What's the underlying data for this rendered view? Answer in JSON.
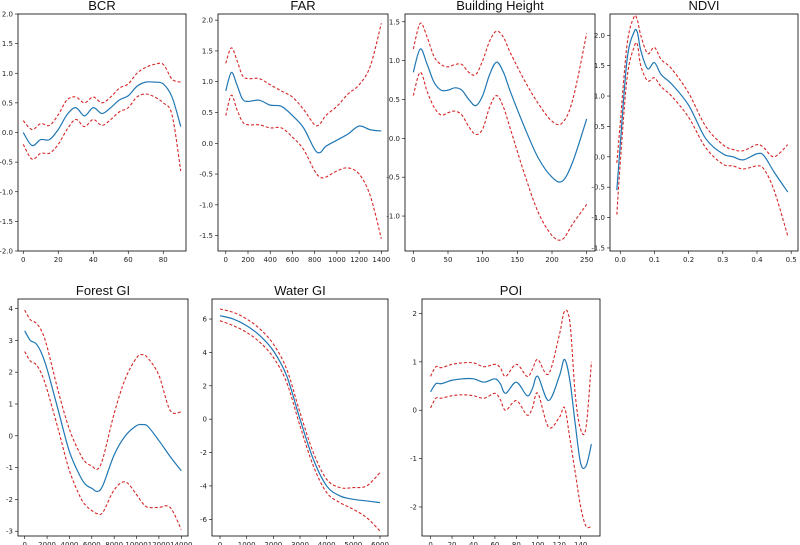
{
  "colors": {
    "fit": "#1f77b4",
    "ci": "#d62728",
    "axis": "#000000"
  },
  "chart_data": [
    {
      "type": "line",
      "title": "BCR",
      "xlim": [
        -3,
        93
      ],
      "ylim": [
        -2.0,
        2.0
      ],
      "xticks": [
        0,
        20,
        40,
        60,
        80
      ],
      "xtick_labels": [
        "0",
        "20",
        "40",
        "60",
        "80"
      ],
      "yticks": [
        -2.0,
        -1.5,
        -1.0,
        -0.5,
        0.0,
        0.5,
        1.0,
        1.5,
        2.0
      ],
      "ytick_labels": [
        "-2.0",
        "-1.5",
        "-1.0",
        "-0.5",
        "0.0",
        "0.5",
        "1.0",
        "1.5",
        "2.0"
      ],
      "x": [
        0,
        5,
        10,
        15,
        20,
        25,
        30,
        35,
        40,
        45,
        50,
        55,
        60,
        65,
        70,
        75,
        80,
        85,
        90
      ],
      "series": [
        {
          "values": [
            0.0,
            -0.22,
            -0.12,
            -0.12,
            0.05,
            0.3,
            0.42,
            0.28,
            0.42,
            0.32,
            0.42,
            0.55,
            0.62,
            0.78,
            0.85,
            0.85,
            0.82,
            0.6,
            0.1
          ]
        },
        {
          "values": [
            0.2,
            0.05,
            0.15,
            0.12,
            0.3,
            0.55,
            0.6,
            0.5,
            0.6,
            0.5,
            0.6,
            0.75,
            0.82,
            1.0,
            1.1,
            1.15,
            1.15,
            0.9,
            0.85
          ]
        },
        {
          "values": [
            -0.2,
            -0.45,
            -0.35,
            -0.35,
            -0.2,
            0.05,
            0.22,
            0.1,
            0.22,
            0.12,
            0.22,
            0.35,
            0.42,
            0.6,
            0.65,
            0.6,
            0.5,
            0.3,
            -0.65
          ]
        }
      ]
    },
    {
      "type": "line",
      "title": "FAR",
      "xlim": [
        -70,
        1460
      ],
      "ylim": [
        -1.75,
        2.1
      ],
      "xticks": [
        0,
        200,
        400,
        600,
        800,
        1000,
        1200,
        1400
      ],
      "xtick_labels": [
        "0",
        "200",
        "400",
        "600",
        "800",
        "1000",
        "1200",
        "1400"
      ],
      "yticks": [
        -1.5,
        -1.0,
        -0.5,
        0.0,
        0.5,
        1.0,
        1.5,
        2.0
      ],
      "ytick_labels": [
        "-1.5",
        "-1.0",
        "-0.5",
        "0.0",
        "0.5",
        "1.0",
        "1.5",
        "2.0"
      ],
      "x": [
        0,
        50,
        100,
        150,
        200,
        300,
        400,
        500,
        600,
        700,
        800,
        850,
        900,
        1000,
        1100,
        1200,
        1300,
        1400
      ],
      "series": [
        {
          "values": [
            0.85,
            1.15,
            0.95,
            0.72,
            0.68,
            0.7,
            0.62,
            0.6,
            0.45,
            0.25,
            -0.1,
            -0.15,
            -0.05,
            0.05,
            0.15,
            0.28,
            0.22,
            0.2
          ]
        },
        {
          "values": [
            1.3,
            1.55,
            1.35,
            1.1,
            1.05,
            1.05,
            0.95,
            0.85,
            0.75,
            0.55,
            0.3,
            0.32,
            0.45,
            0.6,
            0.8,
            0.95,
            1.25,
            1.95
          ]
        },
        {
          "values": [
            0.45,
            0.78,
            0.55,
            0.35,
            0.3,
            0.3,
            0.25,
            0.25,
            0.1,
            -0.1,
            -0.45,
            -0.55,
            -0.55,
            -0.45,
            -0.4,
            -0.5,
            -0.85,
            -1.55
          ]
        }
      ]
    },
    {
      "type": "line",
      "title": "Building Height",
      "xlim": [
        -12,
        262
      ],
      "ylim": [
        -1.45,
        1.6
      ],
      "xticks": [
        0,
        50,
        100,
        150,
        200,
        250
      ],
      "xtick_labels": [
        "0",
        "50",
        "100",
        "150",
        "200",
        "250"
      ],
      "yticks": [
        -1.0,
        -0.5,
        0.0,
        0.5,
        1.0,
        1.5
      ],
      "ytick_labels": [
        "-1.0",
        "-0.5",
        "0.0",
        "0.5",
        "1.0",
        "1.5"
      ],
      "x": [
        0,
        10,
        20,
        30,
        40,
        50,
        60,
        70,
        80,
        90,
        100,
        110,
        120,
        130,
        140,
        160,
        180,
        200,
        215,
        230,
        250
      ],
      "series": [
        {
          "values": [
            0.85,
            1.15,
            0.95,
            0.72,
            0.62,
            0.62,
            0.65,
            0.62,
            0.5,
            0.42,
            0.55,
            0.82,
            0.98,
            0.85,
            0.6,
            0.15,
            -0.25,
            -0.5,
            -0.55,
            -0.3,
            0.25
          ]
        },
        {
          "values": [
            1.15,
            1.48,
            1.3,
            1.05,
            0.95,
            0.92,
            0.95,
            0.95,
            0.85,
            0.82,
            1.0,
            1.25,
            1.38,
            1.3,
            1.1,
            0.75,
            0.45,
            0.22,
            0.2,
            0.5,
            1.35
          ]
        },
        {
          "values": [
            0.55,
            0.85,
            0.6,
            0.4,
            0.3,
            0.33,
            0.35,
            0.3,
            0.15,
            0.05,
            0.12,
            0.4,
            0.55,
            0.4,
            0.12,
            -0.45,
            -0.95,
            -1.25,
            -1.3,
            -1.1,
            -0.85
          ]
        }
      ]
    },
    {
      "type": "line",
      "title": "NDVI",
      "xlim": [
        -0.03,
        0.52
      ],
      "ylim": [
        -1.55,
        2.35
      ],
      "xticks": [
        0.0,
        0.1,
        0.2,
        0.3,
        0.4,
        0.5
      ],
      "xtick_labels": [
        "0.0",
        "0.1",
        "0.2",
        "0.3",
        "0.4",
        "0.5"
      ],
      "yticks": [
        -1.5,
        -1.0,
        -0.5,
        0.0,
        0.5,
        1.0,
        1.5,
        2.0
      ],
      "ytick_labels": [
        "-1.5",
        "-1.0",
        "-0.5",
        "0.0",
        "0.5",
        "1.0",
        "1.5",
        "2.0"
      ],
      "x": [
        -0.01,
        0.0,
        0.02,
        0.04,
        0.05,
        0.06,
        0.08,
        0.1,
        0.12,
        0.15,
        0.2,
        0.25,
        0.3,
        0.33,
        0.36,
        0.4,
        0.42,
        0.45,
        0.49
      ],
      "series": [
        {
          "values": [
            -0.55,
            0.2,
            1.6,
            2.05,
            2.05,
            1.75,
            1.45,
            1.55,
            1.35,
            1.2,
            0.85,
            0.3,
            0.05,
            0.0,
            -0.05,
            0.05,
            0.02,
            -0.25,
            -0.58
          ]
        },
        {
          "values": [
            -0.1,
            0.55,
            1.85,
            2.3,
            2.25,
            2.0,
            1.7,
            1.8,
            1.6,
            1.45,
            1.05,
            0.5,
            0.2,
            0.12,
            0.1,
            0.2,
            0.15,
            0.0,
            0.2
          ]
        },
        {
          "values": [
            -0.95,
            -0.1,
            1.3,
            1.8,
            1.85,
            1.5,
            1.25,
            1.3,
            1.15,
            1.0,
            0.65,
            0.15,
            -0.12,
            -0.15,
            -0.2,
            -0.15,
            -0.2,
            -0.55,
            -1.3
          ]
        }
      ]
    },
    {
      "type": "line",
      "title": "Forest GI",
      "xlim": [
        -600,
        14600
      ],
      "ylim": [
        -3.15,
        4.3
      ],
      "xticks": [
        0,
        2000,
        4000,
        6000,
        8000,
        10000,
        12000,
        14000
      ],
      "xtick_labels": [
        "0",
        "2000",
        "4000",
        "6000",
        "8000",
        "10000",
        "12000",
        "14000"
      ],
      "yticks": [
        -3,
        -2,
        -1,
        0,
        1,
        2,
        3,
        4
      ],
      "ytick_labels": [
        "-3",
        "-2",
        "-1",
        "0",
        "1",
        "2",
        "3",
        "4"
      ],
      "x": [
        0,
        500,
        1000,
        1500,
        2000,
        3000,
        4000,
        5000,
        5500,
        6000,
        6500,
        7000,
        8000,
        9000,
        10000,
        10500,
        11000,
        12000,
        13000,
        14000
      ],
      "series": [
        {
          "values": [
            3.3,
            3.0,
            2.9,
            2.6,
            2.1,
            0.8,
            -0.5,
            -1.3,
            -1.55,
            -1.65,
            -1.75,
            -1.55,
            -0.6,
            0.0,
            0.32,
            0.35,
            0.3,
            -0.15,
            -0.65,
            -1.1
          ]
        },
        {
          "values": [
            3.95,
            3.65,
            3.55,
            3.3,
            2.8,
            1.4,
            0.2,
            -0.6,
            -0.85,
            -0.95,
            -1.05,
            -0.7,
            0.7,
            1.8,
            2.45,
            2.55,
            2.45,
            1.9,
            0.8,
            0.75
          ]
        },
        {
          "values": [
            2.65,
            2.35,
            2.25,
            1.95,
            1.45,
            0.2,
            -1.1,
            -1.95,
            -2.2,
            -2.35,
            -2.45,
            -2.4,
            -1.7,
            -1.45,
            -1.85,
            -2.1,
            -2.25,
            -2.25,
            -2.25,
            -2.95
          ]
        }
      ]
    },
    {
      "type": "line",
      "title": "Water GI",
      "xlim": [
        -300,
        6300
      ],
      "ylim": [
        -7.0,
        7.2
      ],
      "xticks": [
        0,
        1000,
        2000,
        3000,
        4000,
        5000,
        6000
      ],
      "xtick_labels": [
        "0",
        "1000",
        "2000",
        "3000",
        "4000",
        "5000",
        "6000"
      ],
      "yticks": [
        -6,
        -4,
        -2,
        0,
        2,
        4,
        6
      ],
      "ytick_labels": [
        "-6",
        "-4",
        "-2",
        "0",
        "2",
        "4",
        "6"
      ],
      "x": [
        0,
        500,
        1000,
        1500,
        2000,
        2500,
        3000,
        3500,
        4000,
        4500,
        5000,
        5500,
        6000
      ],
      "series": [
        {
          "values": [
            6.2,
            6.0,
            5.6,
            5.0,
            4.1,
            2.6,
            0.0,
            -2.4,
            -4.0,
            -4.6,
            -4.8,
            -4.9,
            -5.0
          ]
        },
        {
          "values": [
            6.6,
            6.4,
            6.0,
            5.4,
            4.5,
            3.0,
            0.4,
            -2.0,
            -3.6,
            -4.1,
            -4.1,
            -4.0,
            -3.2
          ]
        },
        {
          "values": [
            5.9,
            5.6,
            5.2,
            4.6,
            3.7,
            2.2,
            -0.4,
            -2.8,
            -4.4,
            -5.0,
            -5.4,
            -5.9,
            -6.7
          ]
        }
      ]
    },
    {
      "type": "line",
      "title": "POI",
      "xlim": [
        -8,
        158
      ],
      "ylim": [
        -2.6,
        2.3
      ],
      "xticks": [
        0,
        20,
        40,
        60,
        80,
        100,
        120,
        140
      ],
      "xtick_labels": [
        "0",
        "20",
        "40",
        "60",
        "80",
        "100",
        "120",
        "140"
      ],
      "yticks": [
        -2,
        -1,
        0,
        1,
        2
      ],
      "ytick_labels": [
        "-2",
        "-1",
        "0",
        "1",
        "2"
      ],
      "x": [
        0,
        5,
        10,
        20,
        30,
        40,
        50,
        60,
        65,
        70,
        80,
        90,
        95,
        100,
        110,
        120,
        125,
        130,
        135,
        140,
        145,
        150
      ],
      "series": [
        {
          "values": [
            0.38,
            0.55,
            0.55,
            0.62,
            0.65,
            0.65,
            0.58,
            0.65,
            0.55,
            0.35,
            0.58,
            0.3,
            0.45,
            0.7,
            0.2,
            0.7,
            1.05,
            0.6,
            -0.3,
            -1.1,
            -1.15,
            -0.7
          ]
        },
        {
          "values": [
            0.7,
            0.9,
            0.88,
            0.95,
            0.98,
            0.98,
            0.9,
            0.95,
            0.88,
            0.7,
            0.95,
            0.7,
            0.85,
            1.05,
            0.75,
            1.55,
            2.05,
            1.8,
            0.3,
            -0.4,
            -0.35,
            1.0
          ]
        },
        {
          "values": [
            0.05,
            0.25,
            0.25,
            0.3,
            0.32,
            0.3,
            0.25,
            0.35,
            0.22,
            0.0,
            0.2,
            -0.1,
            0.05,
            0.35,
            -0.35,
            -0.15,
            0.05,
            -0.6,
            -1.3,
            -2.0,
            -2.4,
            -2.4
          ]
        }
      ]
    }
  ]
}
